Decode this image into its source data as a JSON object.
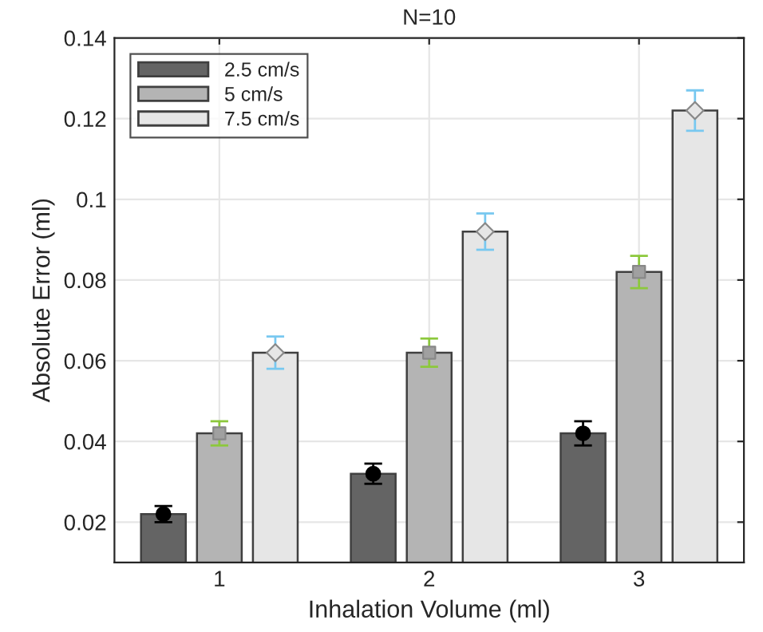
{
  "chart_data": {
    "type": "bar",
    "title": "N=10",
    "xlabel": "Inhalation Volume (ml)",
    "ylabel": "Absolute Error (ml)",
    "categories": [
      "1",
      "2",
      "3"
    ],
    "series": [
      {
        "name": "2.5 cm/s",
        "color": "#646464",
        "values": [
          0.022,
          0.032,
          0.042
        ]
      },
      {
        "name": "5 cm/s",
        "color": "#b4b4b4",
        "values": [
          0.042,
          0.062,
          0.082
        ]
      },
      {
        "name": "7.5 cm/s",
        "color": "#e6e6e6",
        "values": [
          0.062,
          0.092,
          0.122
        ]
      },
      {
        "type": "scatter",
        "x": [
          "1",
          "2",
          "3"
        ],
        "color": "#000000",
        "colors": [
          "#000000",
          "#000000",
          "#000000"
        ],
        "marker": "circle",
        "values": [
          0.022,
          0.032,
          0.042
        ],
        "errors": [
          0.002,
          0.0025,
          0.003
        ]
      },
      {
        "type": "scatter",
        "x": [
          "1",
          "2",
          "3"
        ],
        "color": "#8cc83c",
        "colors": [
          "#a0a0a0",
          "#a0a0a0",
          "#a0a0a0"
        ],
        "marker": "square",
        "values": [
          0.042,
          0.062,
          0.082
        ],
        "errors": [
          0.003,
          0.0035,
          0.004
        ]
      },
      {
        "type": "scatter",
        "x": [
          "1",
          "2",
          "3"
        ],
        "color": "#78c8f0",
        "colors": [
          "#e6e6e6",
          "#e6e6e6",
          "#e6e6e6"
        ],
        "marker": "diamond",
        "values": [
          0.062,
          0.092,
          0.122
        ],
        "errors": [
          0.004,
          0.0045,
          0.005
        ]
      }
    ],
    "ylim": [
      0.01,
      0.14
    ],
    "yticks": [
      {
        "value": 0.02,
        "label": "0.02"
      },
      {
        "value": 0.04,
        "label": "0.04"
      },
      {
        "value": 0.06,
        "label": "0.06"
      },
      {
        "value": 0.08,
        "label": "0.08"
      },
      {
        "value": 0.1,
        "label": "0.1"
      },
      {
        "value": 0.12,
        "label": "0.12"
      },
      {
        "value": 0.14,
        "label": "0.14"
      }
    ],
    "grid": true,
    "legend": "top left"
  }
}
